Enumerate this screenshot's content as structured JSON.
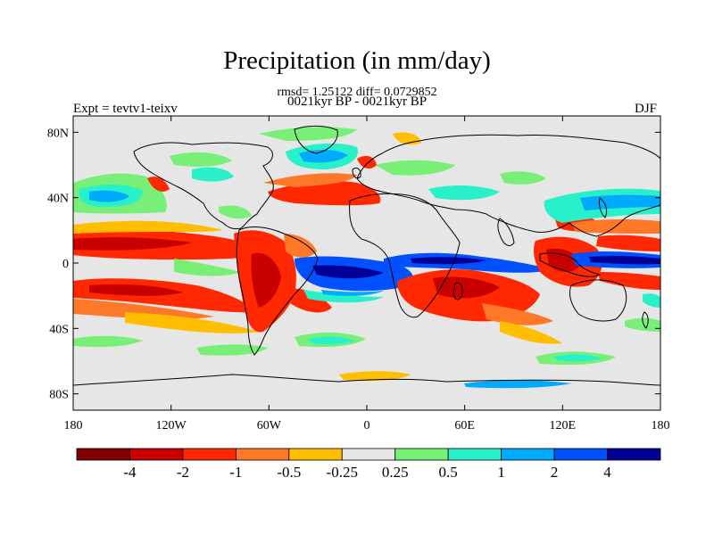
{
  "title": "Precipitation (in mm/day)",
  "stats_line": "rmsd= 1.25122 diff= 0.0729852",
  "period_line": "0021kyr BP - 0021kyr BP",
  "left_label": "Expt = tevtv1-teixv",
  "right_label": "DJF",
  "axes": {
    "lat_ticks": [
      {
        "value": 80,
        "label": "80N"
      },
      {
        "value": 40,
        "label": "40N"
      },
      {
        "value": 0,
        "label": "0"
      },
      {
        "value": -40,
        "label": "40S"
      },
      {
        "value": -80,
        "label": "80S"
      }
    ],
    "lon_ticks": [
      {
        "value": -180,
        "label": "180"
      },
      {
        "value": -120,
        "label": "120W"
      },
      {
        "value": -60,
        "label": "60W"
      },
      {
        "value": 0,
        "label": "0"
      },
      {
        "value": 60,
        "label": "60E"
      },
      {
        "value": 120,
        "label": "120E"
      },
      {
        "value": 180,
        "label": "180"
      }
    ],
    "lon_range": [
      -180,
      180
    ],
    "lat_range": [
      -90,
      90
    ]
  },
  "colorbar": {
    "colors": [
      "#800000",
      "#c80000",
      "#ff2800",
      "#ff7828",
      "#ffbe00",
      "#e6e6e6",
      "#78f078",
      "#28f0c8",
      "#00aaff",
      "#0050ff",
      "#000096"
    ],
    "labels": [
      "-4",
      "-2",
      "-1",
      "-0.5",
      "-0.25",
      "0.25",
      "0.5",
      "1",
      "2",
      "4"
    ]
  },
  "colors": {
    "background_fill": "#e6e6e6",
    "coastline": "#000000"
  }
}
